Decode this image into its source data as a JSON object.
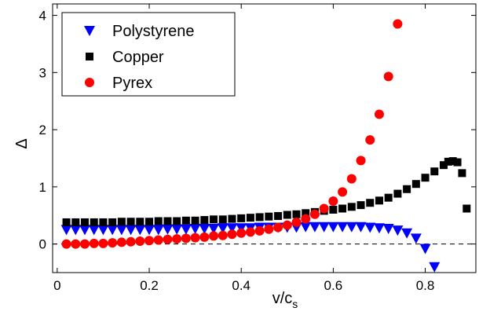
{
  "chart_data": {
    "type": "scatter",
    "xlabel": "v/c",
    "xlabel_sub": "s",
    "ylabel": "Δ",
    "xlim": [
      -0.01,
      0.91
    ],
    "ylim": [
      -0.5,
      4.2
    ],
    "xticks": [
      "0",
      "0.2",
      "0.4",
      "0.6",
      "0.8"
    ],
    "xtick_values": [
      0,
      0.2,
      0.4,
      0.6,
      0.8
    ],
    "yticks": [
      "0",
      "1",
      "2",
      "3",
      "4"
    ],
    "ytick_values": [
      0,
      1,
      2,
      3,
      4
    ],
    "reference_line": 0,
    "grid": false,
    "legend_position": "top-left",
    "series": [
      {
        "name": "Polystyrene",
        "marker": "triangle-down",
        "color": "#0000ff",
        "x": [
          0.02,
          0.04,
          0.06,
          0.08,
          0.1,
          0.12,
          0.14,
          0.16,
          0.18,
          0.2,
          0.22,
          0.24,
          0.26,
          0.28,
          0.3,
          0.32,
          0.34,
          0.36,
          0.38,
          0.4,
          0.42,
          0.44,
          0.46,
          0.48,
          0.5,
          0.52,
          0.54,
          0.56,
          0.58,
          0.6,
          0.62,
          0.64,
          0.66,
          0.68,
          0.7,
          0.72,
          0.74,
          0.76,
          0.78,
          0.8,
          0.82
        ],
        "y": [
          0.25,
          0.25,
          0.25,
          0.25,
          0.25,
          0.25,
          0.25,
          0.25,
          0.25,
          0.25,
          0.25,
          0.26,
          0.26,
          0.26,
          0.27,
          0.27,
          0.27,
          0.28,
          0.28,
          0.28,
          0.28,
          0.29,
          0.29,
          0.29,
          0.29,
          0.29,
          0.3,
          0.3,
          0.3,
          0.3,
          0.3,
          0.3,
          0.3,
          0.29,
          0.28,
          0.27,
          0.24,
          0.19,
          0.1,
          -0.08,
          -0.4
        ]
      },
      {
        "name": "Copper",
        "marker": "square",
        "color": "#000000",
        "x": [
          0.02,
          0.04,
          0.06,
          0.08,
          0.1,
          0.12,
          0.14,
          0.16,
          0.18,
          0.2,
          0.22,
          0.24,
          0.26,
          0.28,
          0.3,
          0.32,
          0.34,
          0.36,
          0.38,
          0.4,
          0.42,
          0.44,
          0.46,
          0.48,
          0.5,
          0.52,
          0.54,
          0.56,
          0.58,
          0.6,
          0.62,
          0.64,
          0.66,
          0.68,
          0.7,
          0.72,
          0.74,
          0.76,
          0.78,
          0.8,
          0.82,
          0.84,
          0.85,
          0.86,
          0.87,
          0.88,
          0.89
        ],
        "y": [
          0.38,
          0.38,
          0.38,
          0.38,
          0.38,
          0.38,
          0.39,
          0.39,
          0.39,
          0.39,
          0.4,
          0.4,
          0.4,
          0.41,
          0.41,
          0.42,
          0.43,
          0.43,
          0.44,
          0.45,
          0.46,
          0.47,
          0.48,
          0.49,
          0.51,
          0.52,
          0.54,
          0.56,
          0.58,
          0.6,
          0.62,
          0.65,
          0.68,
          0.72,
          0.76,
          0.81,
          0.88,
          0.96,
          1.05,
          1.16,
          1.27,
          1.38,
          1.44,
          1.45,
          1.43,
          1.24,
          0.62
        ]
      },
      {
        "name": "Pyrex",
        "marker": "circle",
        "color": "#ff0000",
        "x": [
          0.02,
          0.04,
          0.06,
          0.08,
          0.1,
          0.12,
          0.14,
          0.16,
          0.18,
          0.2,
          0.22,
          0.24,
          0.26,
          0.28,
          0.3,
          0.32,
          0.34,
          0.36,
          0.38,
          0.4,
          0.42,
          0.44,
          0.46,
          0.48,
          0.5,
          0.52,
          0.54,
          0.56,
          0.58,
          0.6,
          0.62,
          0.64,
          0.66,
          0.68,
          0.7,
          0.72,
          0.74
        ],
        "y": [
          0.0,
          0.0,
          0.0,
          0.01,
          0.01,
          0.02,
          0.03,
          0.04,
          0.05,
          0.06,
          0.07,
          0.08,
          0.09,
          0.1,
          0.11,
          0.12,
          0.14,
          0.15,
          0.17,
          0.19,
          0.21,
          0.23,
          0.26,
          0.29,
          0.33,
          0.38,
          0.44,
          0.52,
          0.62,
          0.75,
          0.91,
          1.14,
          1.46,
          1.82,
          2.27,
          2.93,
          3.85
        ]
      }
    ]
  }
}
